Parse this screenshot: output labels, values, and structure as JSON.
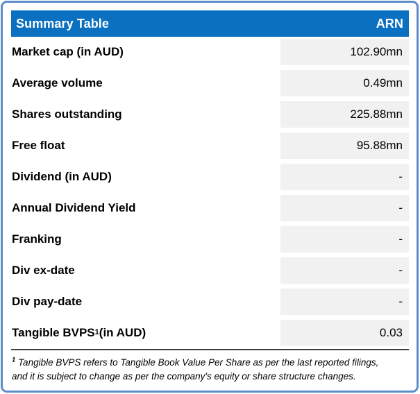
{
  "table": {
    "header": {
      "title": "Summary Table",
      "ticker": "ARN"
    },
    "rows": [
      {
        "label": "Market cap (in AUD)",
        "value": "102.90mn"
      },
      {
        "label": "Average volume",
        "value": "0.49mn"
      },
      {
        "label": "Shares outstanding",
        "value": "225.88mn"
      },
      {
        "label": "Free float",
        "value": "95.88mn"
      },
      {
        "label": "Dividend (in AUD)",
        "value": "-"
      },
      {
        "label": "Annual Dividend Yield",
        "value": "-"
      },
      {
        "label": "Franking",
        "value": "-"
      },
      {
        "label": "Div ex-date",
        "value": "-"
      },
      {
        "label": "Div pay-date",
        "value": "-"
      },
      {
        "label": "Tangible BVPS",
        "label_sup": "1",
        "label_tail": " (in AUD)",
        "value": "0.03"
      }
    ],
    "footnote": {
      "marker": "1",
      "line1": " Tangible BVPS refers to Tangible Book Value Per Share as per the last reported filings,",
      "line2": "and it is subject to change as per the company's equity or share structure changes."
    }
  },
  "colors": {
    "header_bg": "#0b70c0",
    "header_text": "#ffffff",
    "value_cell_bg": "#f1f1f1",
    "outer_border": "#5b8dc9",
    "rule": "#3f3f3f"
  }
}
